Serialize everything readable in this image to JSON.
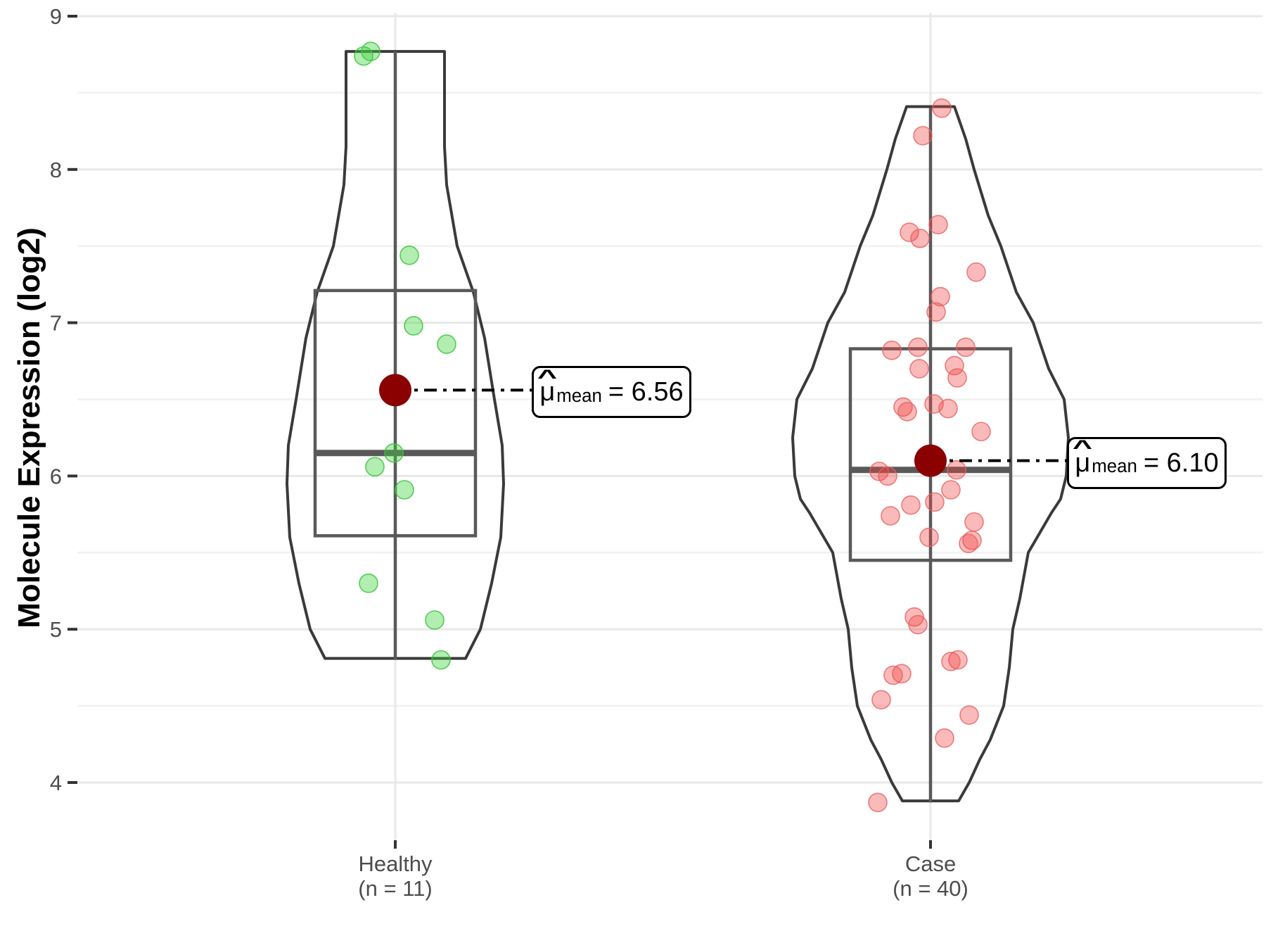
{
  "chart_data": {
    "type": "violin",
    "title": "",
    "ylabel": "Molecule Expression (log2)",
    "xlabel": "",
    "ylim": [
      3.62,
      9.02
    ],
    "yticks_major": [
      9,
      8,
      7,
      6,
      5,
      4
    ],
    "yticks_minor": [
      8.5,
      7.5,
      6.5,
      5.5,
      4.5
    ],
    "grid": true,
    "legend": "none",
    "groups": [
      {
        "id": "healthy",
        "label_line1": "Healthy",
        "label_line2": "(n = 11)",
        "n": 11,
        "mean": 6.56,
        "stats": {
          "min": 4.8,
          "q1": 5.61,
          "median": 6.15,
          "q3": 7.21,
          "max": 8.77
        },
        "values": [
          8.77,
          8.74,
          7.44,
          6.98,
          6.86,
          6.15,
          6.06,
          5.91,
          5.3,
          5.06,
          4.8
        ],
        "jitter_dx": [
          -35,
          -45,
          20,
          26,
          73,
          -2,
          -29,
          13,
          -38,
          56,
          65
        ],
        "dot_fill": "#3fd23f",
        "dot_stroke": "#3cc43c",
        "dot_fill_opacity": 0.4,
        "dot_stroke_opacity": 0.85,
        "violin_profile": [
          [
            8.77,
            70
          ],
          [
            8.5,
            70
          ],
          [
            8.15,
            70
          ],
          [
            7.9,
            73
          ],
          [
            7.5,
            88
          ],
          [
            7.2,
            111
          ],
          [
            6.9,
            127
          ],
          [
            6.5,
            141
          ],
          [
            6.2,
            152
          ],
          [
            5.95,
            154
          ],
          [
            5.6,
            150
          ],
          [
            5.3,
            137
          ],
          [
            5.0,
            121
          ],
          [
            4.81,
            100
          ]
        ],
        "annotation": {
          "mu": "μ",
          "hat": "^",
          "sub": "mean",
          "value": "= 6.56"
        }
      },
      {
        "id": "case",
        "label_line1": "Case",
        "label_line2": "(n = 40)",
        "n": 40,
        "mean": 6.1,
        "stats": {
          "min": 3.87,
          "q1": 5.45,
          "median": 6.04,
          "q3": 6.83,
          "max": 8.4
        },
        "values": [
          8.4,
          8.22,
          7.64,
          7.59,
          7.55,
          7.33,
          7.17,
          7.07,
          6.84,
          6.84,
          6.82,
          6.72,
          6.7,
          6.64,
          6.47,
          6.45,
          6.44,
          6.42,
          6.29,
          6.04,
          6.03,
          6.0,
          5.91,
          5.83,
          5.81,
          5.74,
          5.7,
          5.6,
          5.58,
          5.56,
          5.08,
          5.03,
          4.8,
          4.79,
          4.71,
          4.7,
          4.54,
          4.44,
          4.29,
          3.87
        ],
        "jitter_dx": [
          16,
          -11,
          11,
          -30,
          -15,
          65,
          14,
          8,
          -18,
          50,
          -55,
          34,
          -16,
          38,
          5,
          -39,
          25,
          -33,
          72,
          37,
          -73,
          -61,
          29,
          6,
          -28,
          -57,
          62,
          -2,
          59,
          54,
          -23,
          -18,
          39,
          29,
          -41,
          -53,
          -70,
          55,
          20,
          -75
        ],
        "dot_fill": "#f24444",
        "dot_stroke": "#e86060",
        "dot_fill_opacity": 0.37,
        "dot_stroke_opacity": 0.8,
        "violin_profile": [
          [
            8.41,
            34
          ],
          [
            8.2,
            50
          ],
          [
            8.0,
            62
          ],
          [
            7.7,
            82
          ],
          [
            7.5,
            100
          ],
          [
            7.2,
            122
          ],
          [
            7.0,
            146
          ],
          [
            6.7,
            168
          ],
          [
            6.5,
            190
          ],
          [
            6.25,
            196
          ],
          [
            6.0,
            193
          ],
          [
            5.85,
            185
          ],
          [
            5.76,
            172
          ],
          [
            5.5,
            139
          ],
          [
            5.2,
            127
          ],
          [
            5.0,
            117
          ],
          [
            4.75,
            112
          ],
          [
            4.5,
            104
          ],
          [
            4.28,
            85
          ],
          [
            4.15,
            70
          ],
          [
            4.0,
            55
          ],
          [
            3.88,
            40
          ]
        ],
        "annotation": {
          "mu": "μ",
          "hat": "^",
          "sub": "mean",
          "value": "= 6.10"
        }
      }
    ],
    "colors": {
      "mean_dot": "#8B0000",
      "violin_stroke": "#3a3a3a",
      "box_stroke": "#595959",
      "grid_major": "#e8e8e8",
      "grid_minor": "#f3f3f3",
      "axis_text": "#4d4d4d",
      "tick_mark": "#333333",
      "annotation_line": "#000000",
      "background": "#ffffff"
    }
  }
}
